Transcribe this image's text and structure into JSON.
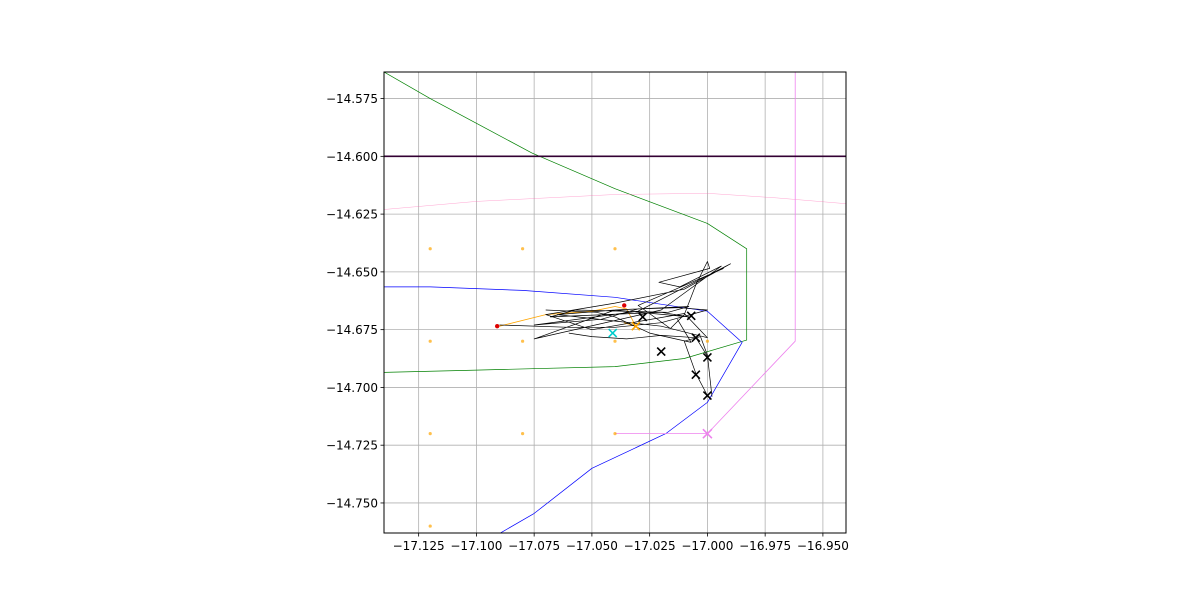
{
  "chart_data": {
    "type": "line",
    "title": "",
    "xlabel": "",
    "ylabel": "",
    "xlim": [
      -17.14,
      -16.94
    ],
    "ylim": [
      -14.763,
      -14.5635
    ],
    "grid": true,
    "legend": "none",
    "x_ticks": [
      {
        "value": -17.125,
        "label": "−17.125"
      },
      {
        "value": -17.1,
        "label": "−17.100"
      },
      {
        "value": -17.075,
        "label": "−17.075"
      },
      {
        "value": -17.05,
        "label": "−17.050"
      },
      {
        "value": -17.025,
        "label": "−17.025"
      },
      {
        "value": -17.0,
        "label": "−17.000"
      },
      {
        "value": -16.975,
        "label": "−16.975"
      },
      {
        "value": -16.95,
        "label": "−16.950"
      }
    ],
    "y_ticks": [
      {
        "value": -14.575,
        "label": "−14.575"
      },
      {
        "value": -14.6,
        "label": "−14.600"
      },
      {
        "value": -14.625,
        "label": "−14.625"
      },
      {
        "value": -14.65,
        "label": "−14.650"
      },
      {
        "value": -14.675,
        "label": "−14.675"
      },
      {
        "value": -14.7,
        "label": "−14.700"
      },
      {
        "value": -14.725,
        "label": "−14.725"
      },
      {
        "value": -14.75,
        "label": "−14.750"
      }
    ],
    "series": [
      {
        "kind": "line",
        "color": "#008000",
        "width": 0.7,
        "x": [
          -17.14,
          -17.12,
          -17.076,
          -17.04,
          -17.0,
          -16.983,
          -16.983,
          -17.01,
          -17.04,
          -17.1,
          -17.14
        ],
        "y": [
          -14.5635,
          -14.575,
          -14.5985,
          -14.614,
          -14.629,
          -14.64,
          -14.6795,
          -14.6875,
          -14.691,
          -14.6925,
          -14.6935
        ]
      },
      {
        "kind": "line",
        "color": "#0000ff",
        "width": 0.7,
        "x": [
          -17.14,
          -17.12,
          -17.08,
          -17.04,
          -17.0,
          -16.985,
          -17.0,
          -17.018,
          -17.05,
          -17.075,
          -17.1
        ],
        "y": [
          -14.6565,
          -14.6565,
          -14.658,
          -14.661,
          -14.667,
          -14.6805,
          -14.7065,
          -14.72,
          -14.735,
          -14.7545,
          -14.769
        ]
      },
      {
        "kind": "line",
        "color": "#ff69b4",
        "width": 0.5,
        "opacity": 0.6,
        "x": [
          -17.14,
          -17.1,
          -17.04,
          -17.0,
          -16.97,
          -16.94
        ],
        "y": [
          -14.623,
          -14.6195,
          -14.6165,
          -14.616,
          -14.618,
          -14.6205
        ]
      },
      {
        "kind": "line",
        "color": "#ee82ee",
        "width": 0.8,
        "x": [
          -16.962,
          -16.962,
          -17.0,
          -17.04
        ],
        "y": [
          -14.5635,
          -14.68,
          -14.72,
          -14.72
        ]
      },
      {
        "kind": "line",
        "color": "#330033",
        "width": 1.6,
        "x": [
          -17.14,
          -16.94
        ],
        "y": [
          -14.6,
          -14.6
        ]
      },
      {
        "kind": "line",
        "color": "#ffa500",
        "width": 0.8,
        "x": [
          -17.09,
          -17.07,
          -17.05,
          -17.04,
          -17.035,
          -17.031,
          -17.036
        ],
        "y": [
          -14.6735,
          -14.6685,
          -14.667,
          -14.665,
          -14.666,
          -14.6735,
          -14.672
        ]
      },
      {
        "kind": "line",
        "color": "#000000",
        "width": 0.7,
        "x": [
          -17.09,
          -17.06,
          -17.04,
          -17.02,
          -17.0,
          -17.012,
          -17.03,
          -17.046,
          -17.075,
          -17.03,
          -16.99,
          -17.01,
          -17.04,
          -17.07,
          -17.05,
          -17.01,
          -17.0,
          -17.02,
          -17.065,
          -17.04,
          -17.008,
          -17.02,
          -17.068,
          -17.057,
          -17.017,
          -17.008,
          -17.04,
          -17.075,
          -17.02,
          -16.994,
          -17.012,
          -17.021,
          -16.999,
          -17.0,
          -17.005,
          -17.01,
          -17.016,
          -17.03,
          -16.993
        ],
        "y": [
          -14.673,
          -14.674,
          -14.674,
          -14.672,
          -14.6665,
          -14.6655,
          -14.666,
          -14.6705,
          -14.673,
          -14.667,
          -14.6465,
          -14.6575,
          -14.6635,
          -14.6685,
          -14.675,
          -14.668,
          -14.6785,
          -14.6735,
          -14.6685,
          -14.6665,
          -14.6695,
          -14.6675,
          -14.6695,
          -14.6665,
          -14.6675,
          -14.665,
          -14.6665,
          -14.679,
          -14.6665,
          -14.6475,
          -14.6565,
          -14.6545,
          -14.6485,
          -14.6455,
          -14.6555,
          -14.6685,
          -14.6745,
          -14.6645,
          -14.6485
        ]
      },
      {
        "kind": "line",
        "color": "#000000",
        "width": 0.7,
        "x": [
          -17.0,
          -17.005,
          -17.01,
          -17.003,
          -17.0,
          -16.998
        ],
        "y": [
          -14.7035,
          -14.694,
          -14.68,
          -14.678,
          -14.686,
          -14.704
        ]
      },
      {
        "kind": "line",
        "color": "#000000",
        "width": 0.7,
        "x": [
          -17.07,
          -17.048,
          -17.04,
          -17.025,
          -17.007,
          -17.013
        ],
        "y": [
          -14.6665,
          -14.6675,
          -14.6695,
          -14.6765,
          -14.6805,
          -14.6705
        ]
      },
      {
        "kind": "line",
        "color": "#000000",
        "width": 0.7,
        "x": [
          -17.06,
          -17.05,
          -17.035,
          -17.02,
          -17.005,
          -17.0
        ],
        "y": [
          -14.6765,
          -14.678,
          -14.679,
          -14.6775,
          -14.6785,
          -14.6865
        ]
      },
      {
        "kind": "scatter",
        "color": "#ffa500",
        "marker": "dot",
        "size": 1.6,
        "opacity": 0.7,
        "x": [
          -17.12,
          -17.08,
          -17.04,
          -17.12,
          -17.08,
          -17.04,
          -17.0,
          -17.12,
          -17.08,
          -17.04,
          -17.12
        ],
        "y": [
          -14.64,
          -14.64,
          -14.64,
          -14.68,
          -14.68,
          -14.68,
          -14.68,
          -14.72,
          -14.72,
          -14.72,
          -14.76
        ]
      },
      {
        "kind": "scatter",
        "color": "#dd0000",
        "marker": "dot",
        "size": 2.2,
        "x": [
          -17.091,
          -17.036
        ],
        "y": [
          -14.6735,
          -14.6645
        ]
      },
      {
        "kind": "scatter",
        "color": "#000000",
        "marker": "x",
        "size": 4,
        "x": [
          -17.028,
          -17.007,
          -17.02,
          -17.005,
          -17.0,
          -17.005,
          -17.0
        ],
        "y": [
          -14.6695,
          -14.669,
          -14.6845,
          -14.6785,
          -14.687,
          -14.6945,
          -14.7035
        ]
      },
      {
        "kind": "scatter",
        "color": "#ffa500",
        "marker": "x",
        "size": 4,
        "x": [
          -17.031
        ],
        "y": [
          -14.6735
        ]
      },
      {
        "kind": "scatter",
        "color": "#00cccc",
        "marker": "x",
        "size": 4,
        "x": [
          -17.041
        ],
        "y": [
          -14.6765
        ]
      },
      {
        "kind": "scatter",
        "color": "#ee82ee",
        "marker": "x",
        "size": 4.5,
        "x": [
          -17.0
        ],
        "y": [
          -14.72
        ]
      }
    ]
  }
}
